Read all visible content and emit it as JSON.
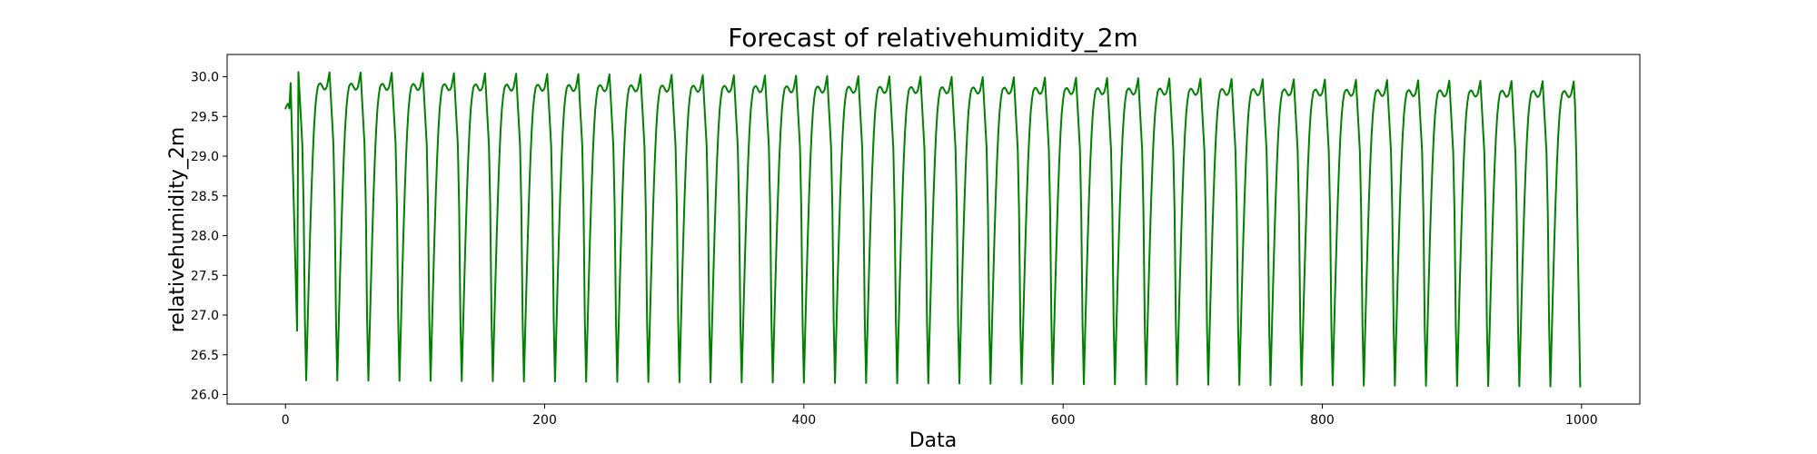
{
  "chart_data": {
    "type": "line",
    "title": "Forecast of relativehumidity_2m",
    "xlabel": "Data",
    "ylabel": "relativehumidity_2m",
    "xlim": [
      -45,
      1045
    ],
    "ylim": [
      25.88,
      30.28
    ],
    "xticks": [
      0,
      200,
      400,
      600,
      800,
      1000
    ],
    "yticks": [
      26.0,
      26.5,
      27.0,
      27.5,
      28.0,
      28.5,
      29.0,
      29.5,
      30.0
    ],
    "grid": false,
    "line_color": "#008000",
    "series": [
      {
        "n_points": 1000,
        "start_values": [
          29.6,
          29.64,
          29.66,
          29.6,
          29.92
        ],
        "cycle_period": 24,
        "first_peak": 30.06,
        "last_peak": 29.94,
        "first_trough": 26.18,
        "last_trough": 26.1,
        "plateau_first": 29.88,
        "plateau_last": 29.78,
        "end_value": 26.1
      }
    ]
  }
}
